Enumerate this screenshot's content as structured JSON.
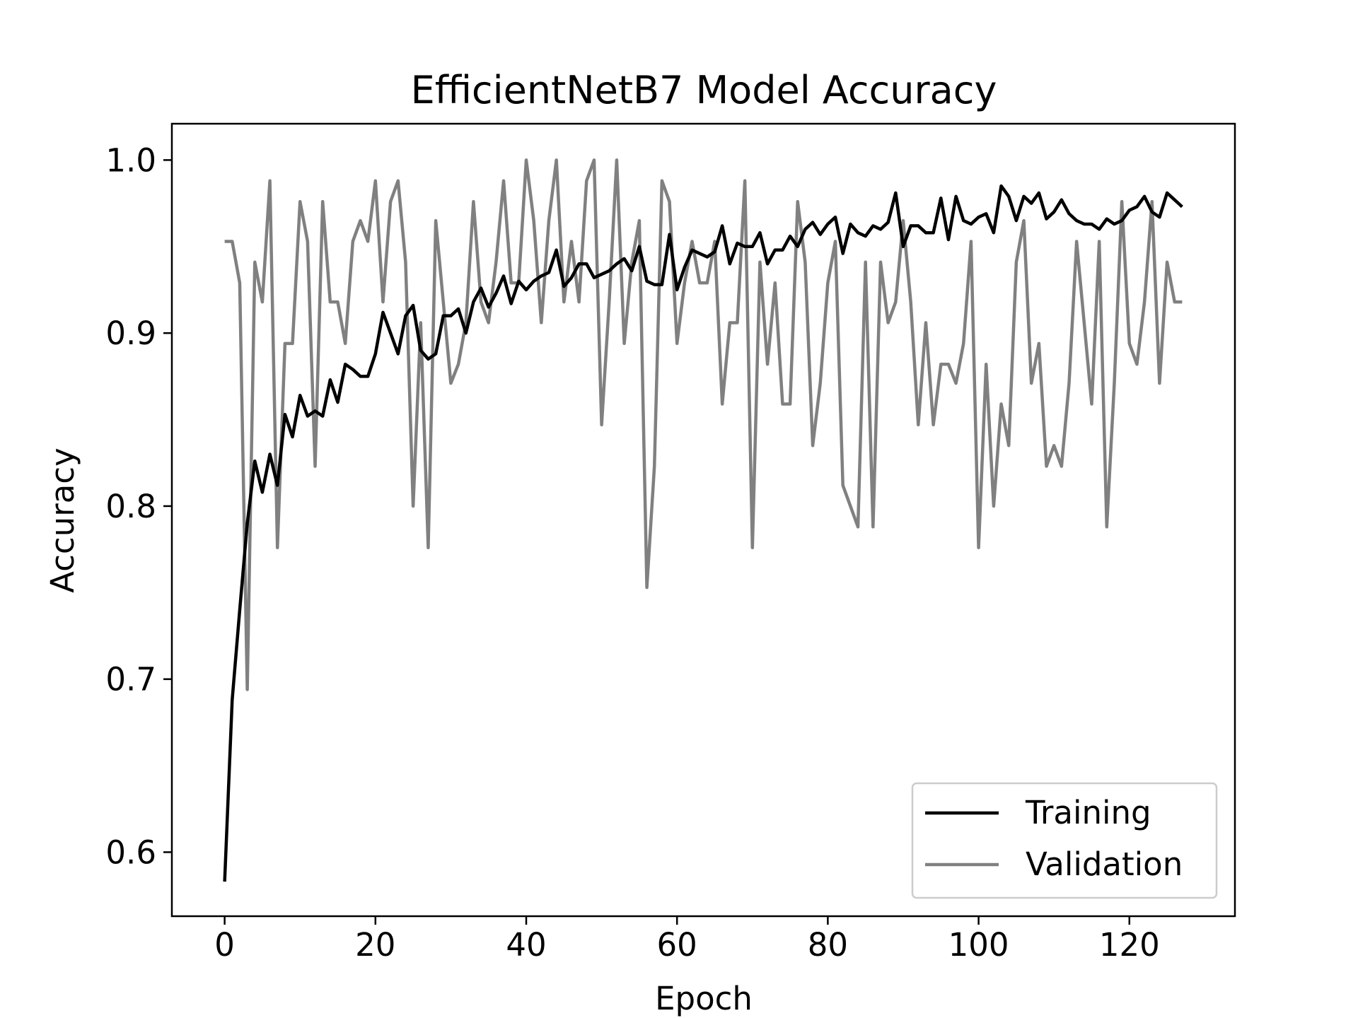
{
  "chart_data": {
    "type": "line",
    "title": "EfficientNetB7 Model Accuracy",
    "xlabel": "Epoch",
    "ylabel": "Accuracy",
    "xlim": [
      -7,
      134
    ],
    "ylim": [
      0.563,
      1.021
    ],
    "xticks": [
      0,
      20,
      40,
      60,
      80,
      100,
      120
    ],
    "xtick_labels": [
      "0",
      "20",
      "40",
      "60",
      "80",
      "100",
      "120"
    ],
    "yticks": [
      0.6,
      0.7,
      0.8,
      0.9,
      1.0
    ],
    "ytick_labels": [
      "0.6",
      "0.7",
      "0.8",
      "0.9",
      "1.0"
    ],
    "grid": false,
    "legend_position": "bottom-right",
    "series": [
      {
        "name": "Training",
        "color": "#000000",
        "values": [
          0.583,
          0.688,
          0.74,
          0.79,
          0.826,
          0.808,
          0.83,
          0.812,
          0.853,
          0.84,
          0.864,
          0.852,
          0.855,
          0.852,
          0.873,
          0.86,
          0.882,
          0.879,
          0.875,
          0.875,
          0.888,
          0.912,
          0.9,
          0.888,
          0.91,
          0.916,
          0.89,
          0.885,
          0.888,
          0.91,
          0.91,
          0.914,
          0.9,
          0.918,
          0.926,
          0.915,
          0.923,
          0.933,
          0.917,
          0.93,
          0.925,
          0.93,
          0.933,
          0.935,
          0.948,
          0.927,
          0.932,
          0.94,
          0.94,
          0.932,
          0.934,
          0.936,
          0.94,
          0.943,
          0.936,
          0.95,
          0.93,
          0.928,
          0.928,
          0.957,
          0.925,
          0.938,
          0.948,
          0.946,
          0.944,
          0.947,
          0.962,
          0.94,
          0.952,
          0.95,
          0.95,
          0.958,
          0.94,
          0.948,
          0.948,
          0.956,
          0.95,
          0.96,
          0.964,
          0.957,
          0.963,
          0.967,
          0.946,
          0.963,
          0.958,
          0.956,
          0.962,
          0.96,
          0.964,
          0.981,
          0.95,
          0.962,
          0.962,
          0.958,
          0.958,
          0.978,
          0.954,
          0.979,
          0.965,
          0.963,
          0.967,
          0.969,
          0.958,
          0.985,
          0.979,
          0.965,
          0.979,
          0.975,
          0.981,
          0.966,
          0.97,
          0.977,
          0.969,
          0.965,
          0.963,
          0.963,
          0.96,
          0.966,
          0.963,
          0.965,
          0.971,
          0.973,
          0.979,
          0.97,
          0.967,
          0.981,
          0.977,
          0.973
        ]
      },
      {
        "name": "Validation",
        "color": "#808080",
        "values": [
          0.953,
          0.953,
          0.929,
          0.694,
          0.941,
          0.918,
          0.988,
          0.776,
          0.894,
          0.894,
          0.976,
          0.953,
          0.823,
          0.976,
          0.918,
          0.918,
          0.894,
          0.953,
          0.965,
          0.953,
          0.988,
          0.918,
          0.976,
          0.988,
          0.941,
          0.8,
          0.906,
          0.776,
          0.965,
          0.918,
          0.871,
          0.882,
          0.906,
          0.976,
          0.918,
          0.906,
          0.941,
          0.988,
          0.929,
          0.929,
          1.0,
          0.965,
          0.906,
          0.965,
          1.0,
          0.918,
          0.953,
          0.918,
          0.988,
          1.0,
          0.847,
          0.918,
          1.0,
          0.894,
          0.941,
          0.965,
          0.753,
          0.823,
          0.988,
          0.976,
          0.894,
          0.929,
          0.953,
          0.929,
          0.929,
          0.953,
          0.859,
          0.906,
          0.906,
          0.988,
          0.776,
          0.941,
          0.882,
          0.929,
          0.859,
          0.859,
          0.976,
          0.941,
          0.835,
          0.871,
          0.929,
          0.953,
          0.812,
          0.8,
          0.788,
          0.941,
          0.788,
          0.941,
          0.906,
          0.918,
          0.965,
          0.918,
          0.847,
          0.906,
          0.847,
          0.882,
          0.882,
          0.871,
          0.894,
          0.953,
          0.776,
          0.882,
          0.8,
          0.859,
          0.835,
          0.941,
          0.965,
          0.871,
          0.894,
          0.823,
          0.835,
          0.823,
          0.871,
          0.953,
          0.906,
          0.859,
          0.953,
          0.788,
          0.871,
          0.976,
          0.894,
          0.882,
          0.918,
          0.976,
          0.871,
          0.941,
          0.918,
          0.918
        ]
      }
    ]
  }
}
